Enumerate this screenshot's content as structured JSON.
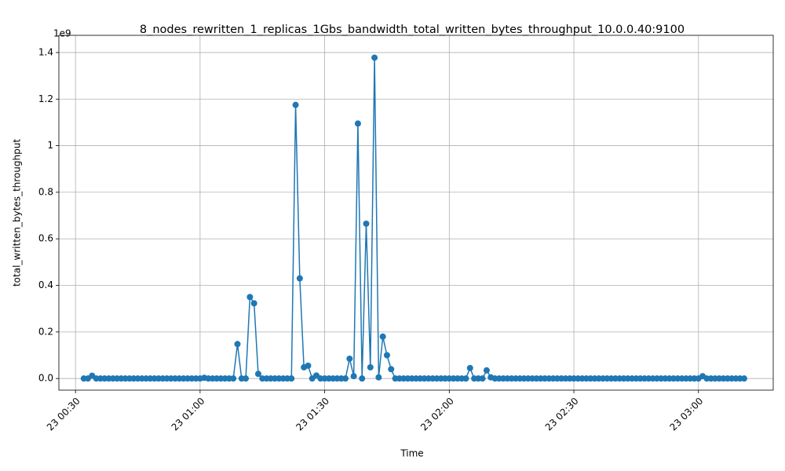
{
  "chart_data": {
    "type": "line",
    "title": "8_nodes_rewritten_1_replicas_1Gbs_bandwidth_total_written_bytes_throughput_10.0.0.40:9100",
    "x_label": "Time",
    "y_label": "total_written_bytes_throughput",
    "y_offset_label": "1e9",
    "x": [
      "23 00:32",
      "23 00:33",
      "23 00:34",
      "23 00:35",
      "23 00:36",
      "23 00:37",
      "23 00:38",
      "23 00:39",
      "23 00:40",
      "23 00:41",
      "23 00:42",
      "23 00:43",
      "23 00:44",
      "23 00:45",
      "23 00:46",
      "23 00:47",
      "23 00:48",
      "23 00:49",
      "23 00:50",
      "23 00:51",
      "23 00:52",
      "23 00:53",
      "23 00:54",
      "23 00:55",
      "23 00:56",
      "23 00:57",
      "23 00:58",
      "23 00:59",
      "23 01:00",
      "23 01:01",
      "23 01:02",
      "23 01:03",
      "23 01:04",
      "23 01:05",
      "23 01:06",
      "23 01:07",
      "23 01:08",
      "23 01:09",
      "23 01:10",
      "23 01:11",
      "23 01:12",
      "23 01:13",
      "23 01:14",
      "23 01:15",
      "23 01:16",
      "23 01:17",
      "23 01:18",
      "23 01:19",
      "23 01:20",
      "23 01:21",
      "23 01:22",
      "23 01:23",
      "23 01:24",
      "23 01:25",
      "23 01:26",
      "23 01:27",
      "23 01:28",
      "23 01:29",
      "23 01:30",
      "23 01:31",
      "23 01:32",
      "23 01:33",
      "23 01:34",
      "23 01:35",
      "23 01:36",
      "23 01:37",
      "23 01:38",
      "23 01:39",
      "23 01:40",
      "23 01:41",
      "23 01:42",
      "23 01:43",
      "23 01:44",
      "23 01:45",
      "23 01:46",
      "23 01:47",
      "23 01:48",
      "23 01:49",
      "23 01:50",
      "23 01:51",
      "23 01:52",
      "23 01:53",
      "23 01:54",
      "23 01:55",
      "23 01:56",
      "23 01:57",
      "23 01:58",
      "23 01:59",
      "23 02:00",
      "23 02:01",
      "23 02:02",
      "23 02:03",
      "23 02:04",
      "23 02:05",
      "23 02:06",
      "23 02:07",
      "23 02:08",
      "23 02:09",
      "23 02:10",
      "23 02:11",
      "23 02:12",
      "23 02:13",
      "23 02:14",
      "23 02:15",
      "23 02:16",
      "23 02:17",
      "23 02:18",
      "23 02:19",
      "23 02:20",
      "23 02:21",
      "23 02:22",
      "23 02:23",
      "23 02:24",
      "23 02:25",
      "23 02:26",
      "23 02:27",
      "23 02:28",
      "23 02:29",
      "23 02:30",
      "23 02:31",
      "23 02:32",
      "23 02:33",
      "23 02:34",
      "23 02:35",
      "23 02:36",
      "23 02:37",
      "23 02:38",
      "23 02:39",
      "23 02:40",
      "23 02:41",
      "23 02:42",
      "23 02:43",
      "23 02:44",
      "23 02:45",
      "23 02:46",
      "23 02:47",
      "23 02:48",
      "23 02:49",
      "23 02:50",
      "23 02:51",
      "23 02:52",
      "23 02:53",
      "23 02:54",
      "23 02:55",
      "23 02:56",
      "23 02:57",
      "23 02:58",
      "23 02:59",
      "23 03:00",
      "23 03:01",
      "23 03:02",
      "23 03:03",
      "23 03:04",
      "23 03:05",
      "23 03:06",
      "23 03:07",
      "23 03:08",
      "23 03:09",
      "23 03:10",
      "23 03:11"
    ],
    "series": [
      {
        "color": "#1f77b4",
        "values": [
          0,
          0,
          0.012,
          0,
          0,
          0,
          0,
          0,
          0,
          0,
          0,
          0,
          0,
          0,
          0,
          0,
          0,
          0,
          0,
          0,
          0,
          0,
          0,
          0,
          0,
          0,
          0,
          0,
          0,
          0.003,
          0,
          0,
          0,
          0,
          0,
          0,
          0,
          0.148,
          0,
          0,
          0.35,
          0.323,
          0.02,
          0,
          0,
          0,
          0,
          0,
          0,
          0,
          0,
          1.175,
          0.43,
          0.048,
          0.055,
          0,
          0.013,
          0,
          0,
          0,
          0,
          0,
          0,
          0,
          0.085,
          0.01,
          1.095,
          0,
          0.665,
          0.048,
          1.378,
          0.005,
          0.18,
          0.1,
          0.04,
          0,
          0,
          0,
          0,
          0,
          0,
          0,
          0,
          0,
          0,
          0,
          0,
          0,
          0,
          0,
          0,
          0,
          0,
          0.045,
          0,
          0,
          0,
          0.035,
          0.005,
          0,
          0,
          0,
          0,
          0,
          0,
          0,
          0,
          0,
          0,
          0,
          0,
          0,
          0,
          0,
          0,
          0,
          0,
          0,
          0,
          0,
          0,
          0,
          0,
          0,
          0,
          0,
          0,
          0,
          0,
          0,
          0,
          0,
          0,
          0,
          0,
          0,
          0,
          0,
          0,
          0,
          0,
          0,
          0,
          0,
          0,
          0,
          0,
          0,
          0,
          0.01,
          0,
          0,
          0,
          0,
          0,
          0,
          0,
          0,
          0,
          0
        ]
      }
    ],
    "xlim": [
      "23 00:26",
      "23 03:18"
    ],
    "xticks": [
      "23 00:30",
      "23 01:00",
      "23 01:30",
      "23 02:00",
      "23 02:30",
      "23 03:00"
    ],
    "ylim": [
      -0.05,
      1.474
    ],
    "yticks": [
      {
        "value": 0,
        "label": "0.0"
      },
      0.2,
      0.4,
      0.6,
      0.8,
      1.0,
      1.2,
      1.4
    ],
    "grid": true
  }
}
